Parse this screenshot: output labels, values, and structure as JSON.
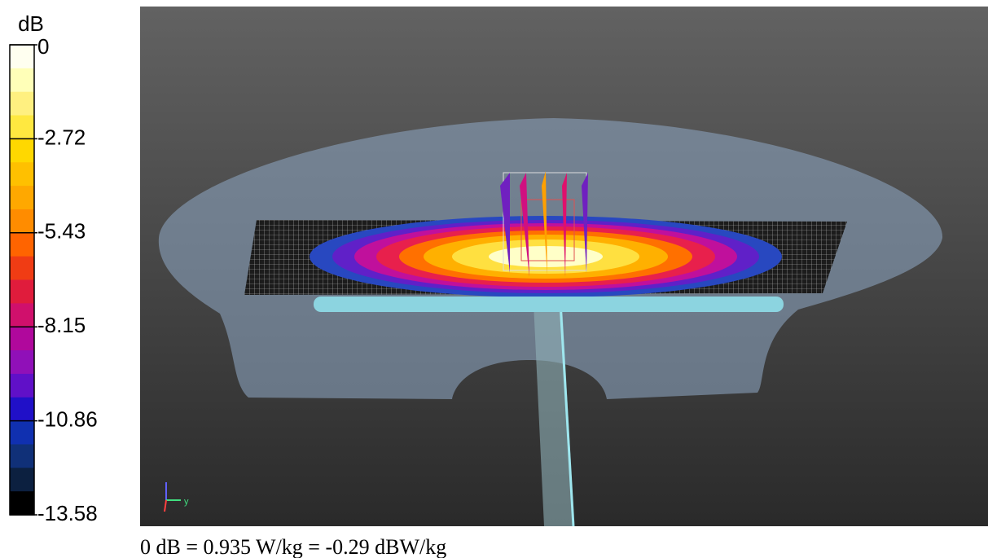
{
  "colorbar": {
    "unit": "dB",
    "ticks": [
      "0",
      "-2.72",
      "-5.43",
      "-8.15",
      "-10.86",
      "-13.58"
    ],
    "colors": [
      "#fffff0",
      "#ffffb8",
      "#fff080",
      "#ffe840",
      "#ffd800",
      "#ffc000",
      "#ffa800",
      "#ff8c00",
      "#ff6400",
      "#f03c14",
      "#e01c3c",
      "#d0106c",
      "#b0089c",
      "#9010b8",
      "#6010c8",
      "#2010c8",
      "#1030b0",
      "#103078",
      "#0c2040",
      "#000000"
    ]
  },
  "triad": {
    "y": "y"
  },
  "caption": "0 dB = 0.935 W/kg = -0.29 dBW/kg"
}
